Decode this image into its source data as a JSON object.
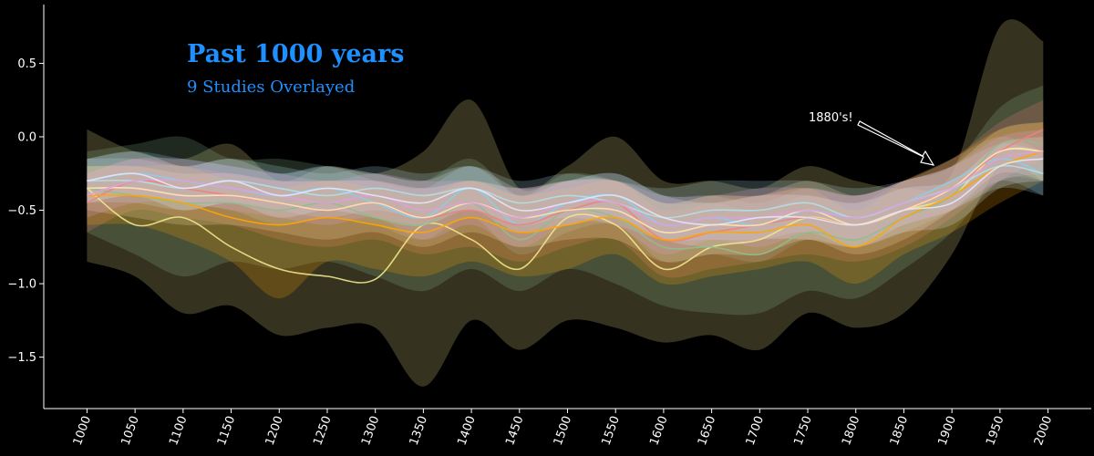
{
  "chart_data": {
    "type": "area",
    "title": "Past 1000 years",
    "subtitle": "9 Studies Overlayed",
    "xlabel": "",
    "ylabel": "",
    "xlim": [
      955,
      2045
    ],
    "ylim": [
      -1.85,
      0.9
    ],
    "x_ticks": [
      1000,
      1050,
      1100,
      1150,
      1200,
      1250,
      1300,
      1350,
      1400,
      1450,
      1500,
      1550,
      1600,
      1650,
      1700,
      1750,
      1800,
      1850,
      1900,
      1950,
      2000
    ],
    "y_ticks": [
      0.5,
      0.0,
      -0.5,
      -1.0,
      -1.5
    ],
    "y_tick_labels": [
      "0.5",
      "0.0",
      "−0.5",
      "−1.0",
      "−1.5"
    ],
    "annotation": {
      "text": "1880's!",
      "x": 1880,
      "y": -0.21
    },
    "grid": false,
    "legend": "none",
    "colors": {
      "background": "#000000",
      "title": "#1e90ff",
      "axes": "#ffffff",
      "annotation": "#ffffff"
    },
    "x": [
      1000,
      1050,
      1100,
      1150,
      1200,
      1250,
      1300,
      1350,
      1400,
      1450,
      1500,
      1550,
      1600,
      1650,
      1700,
      1750,
      1800,
      1850,
      1900,
      1950,
      1995
    ],
    "series": [
      {
        "color": "#f0e68c",
        "values": [
          -0.35,
          -0.6,
          -0.55,
          -0.75,
          -0.9,
          -0.95,
          -0.97,
          -0.6,
          -0.7,
          -0.9,
          -0.55,
          -0.6,
          -0.9,
          -0.75,
          -0.7,
          -0.55,
          -0.6,
          -0.5,
          -0.4,
          -0.1,
          -0.1
        ],
        "upper": [
          0.05,
          -0.1,
          -0.15,
          -0.05,
          -0.3,
          -0.2,
          -0.25,
          -0.1,
          0.25,
          -0.35,
          -0.2,
          0.0,
          -0.3,
          -0.3,
          -0.35,
          -0.2,
          -0.3,
          -0.35,
          -0.25,
          0.75,
          0.65
        ],
        "lower": [
          -0.85,
          -0.95,
          -1.2,
          -1.15,
          -1.35,
          -1.3,
          -1.3,
          -1.7,
          -1.25,
          -1.45,
          -1.25,
          -1.3,
          -1.4,
          -1.35,
          -1.45,
          -1.2,
          -1.3,
          -1.2,
          -0.8,
          -0.2,
          -0.3
        ]
      },
      {
        "color": "#8fbc8f",
        "values": [
          -0.35,
          -0.4,
          -0.45,
          -0.45,
          -0.5,
          -0.45,
          -0.55,
          -0.6,
          -0.45,
          -0.7,
          -0.5,
          -0.55,
          -0.75,
          -0.75,
          -0.8,
          -0.65,
          -0.7,
          -0.55,
          -0.4,
          -0.05,
          -0.05
        ],
        "upper": [
          -0.1,
          -0.05,
          0.0,
          -0.15,
          -0.15,
          -0.2,
          -0.25,
          -0.3,
          -0.15,
          -0.4,
          -0.25,
          -0.3,
          -0.45,
          -0.45,
          -0.5,
          -0.4,
          -0.45,
          -0.3,
          -0.2,
          0.2,
          0.35
        ],
        "lower": [
          -0.65,
          -0.8,
          -0.95,
          -0.85,
          -0.9,
          -0.85,
          -0.95,
          -1.05,
          -0.9,
          -1.05,
          -0.9,
          -1.0,
          -1.15,
          -1.2,
          -1.2,
          -1.05,
          -1.1,
          -0.9,
          -0.65,
          -0.3,
          -0.3
        ]
      },
      {
        "color": "#87ceeb",
        "values": [
          -0.3,
          -0.25,
          -0.3,
          -0.35,
          -0.4,
          -0.35,
          -0.45,
          -0.55,
          -0.35,
          -0.6,
          -0.45,
          -0.4,
          -0.6,
          -0.55,
          -0.6,
          -0.5,
          -0.55,
          -0.45,
          -0.3,
          -0.15,
          -0.25
        ],
        "upper": [
          -0.15,
          -0.1,
          -0.15,
          -0.2,
          -0.25,
          -0.2,
          -0.3,
          -0.35,
          -0.2,
          -0.4,
          -0.3,
          -0.25,
          -0.4,
          -0.4,
          -0.45,
          -0.35,
          -0.4,
          -0.3,
          -0.15,
          0.0,
          -0.1
        ],
        "lower": [
          -0.45,
          -0.4,
          -0.45,
          -0.5,
          -0.6,
          -0.55,
          -0.6,
          -0.7,
          -0.55,
          -0.8,
          -0.65,
          -0.6,
          -0.85,
          -0.8,
          -0.85,
          -0.7,
          -0.75,
          -0.65,
          -0.5,
          -0.3,
          -0.4
        ]
      },
      {
        "color": "#f08080",
        "values": [
          -0.45,
          -0.3,
          -0.35,
          -0.4,
          -0.45,
          -0.5,
          -0.45,
          -0.55,
          -0.5,
          -0.6,
          -0.5,
          -0.45,
          -0.7,
          -0.65,
          -0.6,
          -0.55,
          -0.6,
          -0.5,
          -0.35,
          -0.1,
          0.05
        ],
        "upper": [
          -0.25,
          -0.15,
          -0.2,
          -0.25,
          -0.3,
          -0.3,
          -0.3,
          -0.35,
          -0.3,
          -0.4,
          -0.3,
          -0.3,
          -0.5,
          -0.45,
          -0.4,
          -0.35,
          -0.4,
          -0.3,
          -0.15,
          0.1,
          0.25
        ],
        "lower": [
          -0.65,
          -0.5,
          -0.55,
          -0.6,
          -0.7,
          -0.75,
          -0.7,
          -0.8,
          -0.75,
          -0.85,
          -0.75,
          -0.7,
          -0.95,
          -0.9,
          -0.85,
          -0.8,
          -0.85,
          -0.75,
          -0.55,
          -0.3,
          -0.15
        ]
      },
      {
        "color": "#ffa500",
        "values": [
          -0.4,
          -0.4,
          -0.45,
          -0.55,
          -0.6,
          -0.55,
          -0.6,
          -0.65,
          -0.55,
          -0.65,
          -0.6,
          -0.55,
          -0.7,
          -0.65,
          -0.65,
          -0.6,
          -0.75,
          -0.55,
          -0.4,
          -0.2,
          -0.1
        ],
        "upper": [
          -0.2,
          -0.2,
          -0.2,
          -0.3,
          -0.35,
          -0.3,
          -0.35,
          -0.4,
          -0.3,
          -0.4,
          -0.35,
          -0.3,
          -0.45,
          -0.4,
          -0.4,
          -0.35,
          -0.5,
          -0.3,
          -0.15,
          0.05,
          0.1
        ],
        "lower": [
          -0.6,
          -0.6,
          -0.7,
          -0.85,
          -1.1,
          -0.85,
          -0.9,
          -0.95,
          -0.85,
          -0.95,
          -0.9,
          -0.8,
          -1.0,
          -0.95,
          -0.9,
          -0.85,
          -1.0,
          -0.8,
          -0.65,
          -0.45,
          -0.3
        ]
      },
      {
        "color": "#b0e0e6",
        "values": [
          -0.3,
          -0.3,
          -0.35,
          -0.3,
          -0.35,
          -0.4,
          -0.35,
          -0.4,
          -0.35,
          -0.45,
          -0.4,
          -0.45,
          -0.55,
          -0.5,
          -0.5,
          -0.45,
          -0.55,
          -0.45,
          -0.35,
          -0.2,
          -0.25
        ],
        "upper": [
          -0.15,
          -0.15,
          -0.2,
          -0.15,
          -0.2,
          -0.25,
          -0.2,
          -0.25,
          -0.2,
          -0.3,
          -0.25,
          -0.3,
          -0.35,
          -0.3,
          -0.3,
          -0.3,
          -0.35,
          -0.3,
          -0.2,
          -0.05,
          -0.1
        ],
        "lower": [
          -0.45,
          -0.45,
          -0.5,
          -0.45,
          -0.5,
          -0.55,
          -0.5,
          -0.55,
          -0.5,
          -0.6,
          -0.55,
          -0.6,
          -0.7,
          -0.7,
          -0.7,
          -0.65,
          -0.75,
          -0.6,
          -0.5,
          -0.35,
          -0.4
        ]
      },
      {
        "color": "#ffe4b5",
        "values": [
          -0.35,
          -0.35,
          -0.4,
          -0.4,
          -0.45,
          -0.5,
          -0.45,
          -0.55,
          -0.45,
          -0.55,
          -0.5,
          -0.5,
          -0.65,
          -0.6,
          -0.6,
          -0.5,
          -0.6,
          -0.5,
          -0.35,
          -0.1,
          -0.1
        ],
        "upper": [
          -0.2,
          -0.2,
          -0.25,
          -0.25,
          -0.3,
          -0.3,
          -0.3,
          -0.35,
          -0.3,
          -0.35,
          -0.3,
          -0.3,
          -0.45,
          -0.4,
          -0.4,
          -0.3,
          -0.4,
          -0.3,
          -0.2,
          0.05,
          0.1
        ],
        "lower": [
          -0.5,
          -0.55,
          -0.6,
          -0.6,
          -0.65,
          -0.7,
          -0.65,
          -0.75,
          -0.65,
          -0.75,
          -0.7,
          -0.7,
          -0.85,
          -0.8,
          -0.8,
          -0.7,
          -0.8,
          -0.7,
          -0.5,
          -0.25,
          -0.3
        ]
      },
      {
        "color": "#dda0dd",
        "values": [
          -0.4,
          -0.3,
          -0.3,
          -0.35,
          -0.4,
          -0.45,
          -0.4,
          -0.5,
          -0.45,
          -0.55,
          -0.45,
          -0.45,
          -0.6,
          -0.55,
          -0.55,
          -0.5,
          -0.55,
          -0.45,
          -0.35,
          -0.15,
          -0.1
        ],
        "upper": [
          -0.25,
          -0.15,
          -0.15,
          -0.2,
          -0.25,
          -0.3,
          -0.25,
          -0.3,
          -0.3,
          -0.35,
          -0.3,
          -0.3,
          -0.4,
          -0.4,
          -0.35,
          -0.35,
          -0.4,
          -0.3,
          -0.2,
          0.0,
          0.05
        ],
        "lower": [
          -0.55,
          -0.45,
          -0.45,
          -0.5,
          -0.55,
          -0.6,
          -0.55,
          -0.7,
          -0.6,
          -0.75,
          -0.6,
          -0.6,
          -0.8,
          -0.7,
          -0.75,
          -0.65,
          -0.7,
          -0.6,
          -0.5,
          -0.3,
          -0.25
        ]
      },
      {
        "color": "#e6e6fa",
        "values": [
          -0.3,
          -0.25,
          -0.35,
          -0.3,
          -0.4,
          -0.35,
          -0.4,
          -0.45,
          -0.35,
          -0.5,
          -0.45,
          -0.4,
          -0.55,
          -0.6,
          -0.55,
          -0.55,
          -0.6,
          -0.5,
          -0.45,
          -0.2,
          -0.15
        ],
        "upper": [
          -0.15,
          -0.1,
          -0.2,
          -0.15,
          -0.25,
          -0.2,
          -0.25,
          -0.3,
          -0.2,
          -0.35,
          -0.3,
          -0.25,
          -0.4,
          -0.45,
          -0.4,
          -0.4,
          -0.45,
          -0.35,
          -0.3,
          -0.05,
          0.0
        ],
        "lower": [
          -0.45,
          -0.4,
          -0.5,
          -0.45,
          -0.55,
          -0.5,
          -0.55,
          -0.6,
          -0.5,
          -0.65,
          -0.6,
          -0.55,
          -0.7,
          -0.75,
          -0.7,
          -0.7,
          -0.75,
          -0.65,
          -0.6,
          -0.35,
          -0.3
        ]
      }
    ]
  }
}
